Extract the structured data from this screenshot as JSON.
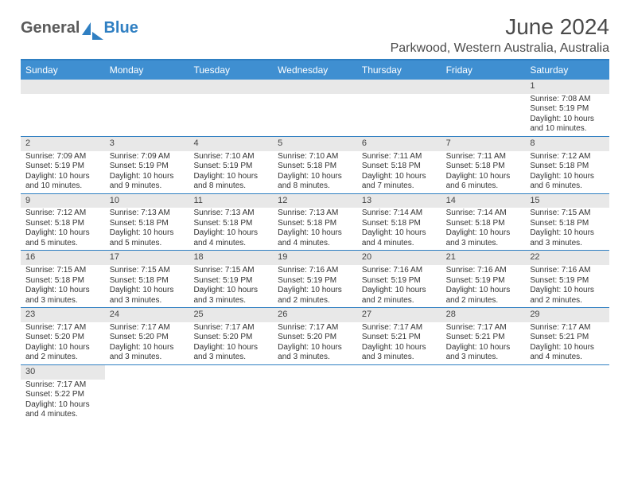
{
  "logo": {
    "a": "General",
    "b": "Blue"
  },
  "title": "June 2024",
  "location": "Parkwood, Western Australia, Australia",
  "colors": {
    "accent": "#3f8fd1",
    "border": "#2f7fc2",
    "bar": "#e8e8e8"
  },
  "dayNames": [
    "Sunday",
    "Monday",
    "Tuesday",
    "Wednesday",
    "Thursday",
    "Friday",
    "Saturday"
  ],
  "weeks": [
    [
      null,
      null,
      null,
      null,
      null,
      null,
      {
        "n": "1",
        "sr": "7:08 AM",
        "ss": "5:19 PM",
        "dl": "10 hours and 10 minutes."
      }
    ],
    [
      {
        "n": "2",
        "sr": "7:09 AM",
        "ss": "5:19 PM",
        "dl": "10 hours and 10 minutes."
      },
      {
        "n": "3",
        "sr": "7:09 AM",
        "ss": "5:19 PM",
        "dl": "10 hours and 9 minutes."
      },
      {
        "n": "4",
        "sr": "7:10 AM",
        "ss": "5:19 PM",
        "dl": "10 hours and 8 minutes."
      },
      {
        "n": "5",
        "sr": "7:10 AM",
        "ss": "5:18 PM",
        "dl": "10 hours and 8 minutes."
      },
      {
        "n": "6",
        "sr": "7:11 AM",
        "ss": "5:18 PM",
        "dl": "10 hours and 7 minutes."
      },
      {
        "n": "7",
        "sr": "7:11 AM",
        "ss": "5:18 PM",
        "dl": "10 hours and 6 minutes."
      },
      {
        "n": "8",
        "sr": "7:12 AM",
        "ss": "5:18 PM",
        "dl": "10 hours and 6 minutes."
      }
    ],
    [
      {
        "n": "9",
        "sr": "7:12 AM",
        "ss": "5:18 PM",
        "dl": "10 hours and 5 minutes."
      },
      {
        "n": "10",
        "sr": "7:13 AM",
        "ss": "5:18 PM",
        "dl": "10 hours and 5 minutes."
      },
      {
        "n": "11",
        "sr": "7:13 AM",
        "ss": "5:18 PM",
        "dl": "10 hours and 4 minutes."
      },
      {
        "n": "12",
        "sr": "7:13 AM",
        "ss": "5:18 PM",
        "dl": "10 hours and 4 minutes."
      },
      {
        "n": "13",
        "sr": "7:14 AM",
        "ss": "5:18 PM",
        "dl": "10 hours and 4 minutes."
      },
      {
        "n": "14",
        "sr": "7:14 AM",
        "ss": "5:18 PM",
        "dl": "10 hours and 3 minutes."
      },
      {
        "n": "15",
        "sr": "7:15 AM",
        "ss": "5:18 PM",
        "dl": "10 hours and 3 minutes."
      }
    ],
    [
      {
        "n": "16",
        "sr": "7:15 AM",
        "ss": "5:18 PM",
        "dl": "10 hours and 3 minutes."
      },
      {
        "n": "17",
        "sr": "7:15 AM",
        "ss": "5:18 PM",
        "dl": "10 hours and 3 minutes."
      },
      {
        "n": "18",
        "sr": "7:15 AM",
        "ss": "5:19 PM",
        "dl": "10 hours and 3 minutes."
      },
      {
        "n": "19",
        "sr": "7:16 AM",
        "ss": "5:19 PM",
        "dl": "10 hours and 2 minutes."
      },
      {
        "n": "20",
        "sr": "7:16 AM",
        "ss": "5:19 PM",
        "dl": "10 hours and 2 minutes."
      },
      {
        "n": "21",
        "sr": "7:16 AM",
        "ss": "5:19 PM",
        "dl": "10 hours and 2 minutes."
      },
      {
        "n": "22",
        "sr": "7:16 AM",
        "ss": "5:19 PM",
        "dl": "10 hours and 2 minutes."
      }
    ],
    [
      {
        "n": "23",
        "sr": "7:17 AM",
        "ss": "5:20 PM",
        "dl": "10 hours and 2 minutes."
      },
      {
        "n": "24",
        "sr": "7:17 AM",
        "ss": "5:20 PM",
        "dl": "10 hours and 3 minutes."
      },
      {
        "n": "25",
        "sr": "7:17 AM",
        "ss": "5:20 PM",
        "dl": "10 hours and 3 minutes."
      },
      {
        "n": "26",
        "sr": "7:17 AM",
        "ss": "5:20 PM",
        "dl": "10 hours and 3 minutes."
      },
      {
        "n": "27",
        "sr": "7:17 AM",
        "ss": "5:21 PM",
        "dl": "10 hours and 3 minutes."
      },
      {
        "n": "28",
        "sr": "7:17 AM",
        "ss": "5:21 PM",
        "dl": "10 hours and 3 minutes."
      },
      {
        "n": "29",
        "sr": "7:17 AM",
        "ss": "5:21 PM",
        "dl": "10 hours and 4 minutes."
      }
    ],
    [
      {
        "n": "30",
        "sr": "7:17 AM",
        "ss": "5:22 PM",
        "dl": "10 hours and 4 minutes."
      },
      null,
      null,
      null,
      null,
      null,
      null
    ]
  ],
  "labels": {
    "sunrise": "Sunrise: ",
    "sunset": "Sunset: ",
    "daylight": "Daylight: "
  }
}
